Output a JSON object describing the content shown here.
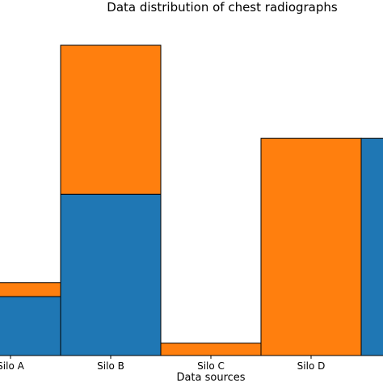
{
  "chart_data": {
    "type": "bar",
    "stacked": true,
    "title": "Data distribution of chest radiographs",
    "xlabel": "Data sources",
    "ylabel": "",
    "categories": [
      "Silo A",
      "Silo B",
      "Silo C",
      "Silo D",
      ""
    ],
    "series": [
      {
        "name": "",
        "color": "#1f77b4",
        "values": [
          76,
          208,
          0,
          0,
          280
        ]
      },
      {
        "name": "",
        "color": "#ff7f0e",
        "values": [
          18,
          192,
          16,
          280,
          0
        ]
      }
    ],
    "ylim": [
      0,
      420
    ],
    "grid": false,
    "bar_edge_color": "#000000"
  }
}
